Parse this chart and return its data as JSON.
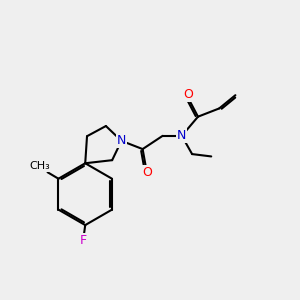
{
  "background_color": "#efefef",
  "bond_color": "#000000",
  "N_color": "#0000cc",
  "O_color": "#ff0000",
  "F_color": "#cc00cc",
  "line_width": 1.5,
  "dbo": 0.06,
  "xlim": [
    0,
    10
  ],
  "ylim": [
    0,
    10
  ]
}
